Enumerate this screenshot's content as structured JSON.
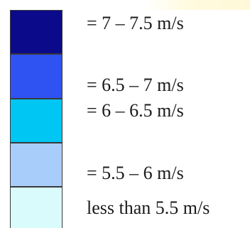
{
  "legend": {
    "items": [
      {
        "color": "#0b0a8a",
        "label": "= 7 – 7.5 m/s"
      },
      {
        "color": "#2f52f2",
        "label": "= 6.5 – 7 m/s"
      },
      {
        "color": "#00c6f3",
        "label": "= 6 – 6.5 m/s"
      },
      {
        "color": "#a9cdfa",
        "label": "= 5.5 – 6 m/s"
      },
      {
        "color": "#d9fbfb",
        "label": "less than 5.5 m/s"
      }
    ]
  }
}
